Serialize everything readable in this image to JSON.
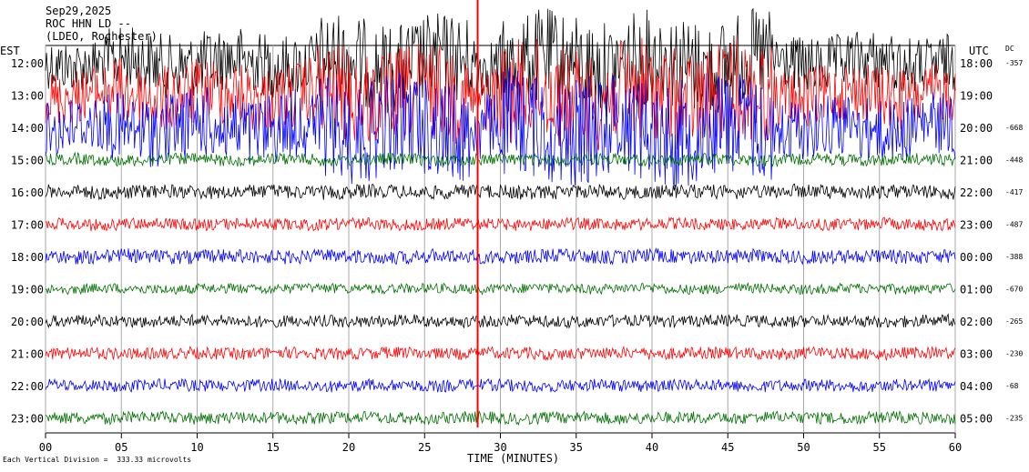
{
  "header": {
    "date": "Sep29,2025",
    "station": "ROC HHN LD --",
    "location": "(LDEO, Rochester)"
  },
  "chart_data": {
    "type": "line",
    "title": "Sep29,2025 ROC HHN LD -- (LDEO, Rochester)",
    "xlabel": "TIME (MINUTES)",
    "left_axis_title": "EST",
    "right_axis_title": "UTC",
    "dc_title": "DC",
    "xlim": [
      0,
      60
    ],
    "x_ticks": [
      "00",
      "05",
      "10",
      "15",
      "20",
      "25",
      "30",
      "35",
      "40",
      "45",
      "50",
      "55",
      "60"
    ],
    "grid": "vertical lines every 5 minutes",
    "colors": [
      "#000000",
      "#ff0000",
      "#0000ff",
      "#007000"
    ],
    "rows": [
      {
        "est": "12:00",
        "utc": "18:00",
        "dc": "-357",
        "color": "#000000",
        "amp": 3.2
      },
      {
        "est": "13:00",
        "utc": "19:00",
        "dc": "",
        "color": "#ff0000",
        "amp": 3.4
      },
      {
        "est": "14:00",
        "utc": "20:00",
        "dc": "-668",
        "color": "#0000ff",
        "amp": 3.6
      },
      {
        "est": "15:00",
        "utc": "21:00",
        "dc": "-448",
        "color": "#007000",
        "amp": 0.6
      },
      {
        "est": "16:00",
        "utc": "22:00",
        "dc": "-417",
        "color": "#000000",
        "amp": 0.7
      },
      {
        "est": "17:00",
        "utc": "23:00",
        "dc": "-487",
        "color": "#ff0000",
        "amp": 0.6
      },
      {
        "est": "18:00",
        "utc": "00:00",
        "dc": "-388",
        "color": "#0000ff",
        "amp": 0.7
      },
      {
        "est": "19:00",
        "utc": "01:00",
        "dc": "-670",
        "color": "#007000",
        "amp": 0.5
      },
      {
        "est": "20:00",
        "utc": "02:00",
        "dc": "-265",
        "color": "#000000",
        "amp": 0.6
      },
      {
        "est": "21:00",
        "utc": "03:00",
        "dc": "-230",
        "color": "#ff0000",
        "amp": 0.6
      },
      {
        "est": "22:00",
        "utc": "04:00",
        "dc": "-68",
        "color": "#0000ff",
        "amp": 0.6
      },
      {
        "est": "23:00",
        "utc": "05:00",
        "dc": "-235",
        "color": "#007000",
        "amp": 0.6
      }
    ],
    "scale_note": "Each Vertical Division =  333.33 microvolts"
  }
}
